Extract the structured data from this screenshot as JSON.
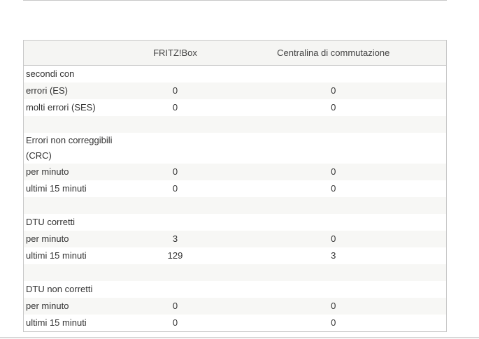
{
  "header": {
    "col0": "",
    "col1": "FRITZ!Box",
    "col2": "Centralina di commutazione"
  },
  "rows": [
    {
      "label": "secondi con",
      "a": "",
      "b": ""
    },
    {
      "label": "errori (ES)",
      "a": "0",
      "b": "0"
    },
    {
      "label": "molti errori (SES)",
      "a": "0",
      "b": "0"
    },
    {
      "label": "",
      "a": "",
      "b": ""
    },
    {
      "label": "Errori non correggibili (CRC)",
      "a": "",
      "b": ""
    },
    {
      "label": "per minuto",
      "a": "0",
      "b": "0"
    },
    {
      "label": "ultimi 15 minuti",
      "a": "0",
      "b": "0"
    },
    {
      "label": "",
      "a": "",
      "b": ""
    },
    {
      "label": "DTU corretti",
      "a": "",
      "b": ""
    },
    {
      "label": "per minuto",
      "a": "3",
      "b": "0"
    },
    {
      "label": "ultimi 15 minuti",
      "a": "129",
      "b": "3"
    },
    {
      "label": "",
      "a": "",
      "b": ""
    },
    {
      "label": "DTU non corretti",
      "a": "",
      "b": ""
    },
    {
      "label": "per minuto",
      "a": "0",
      "b": "0"
    },
    {
      "label": "ultimi 15 minuti",
      "a": "0",
      "b": "0"
    }
  ]
}
